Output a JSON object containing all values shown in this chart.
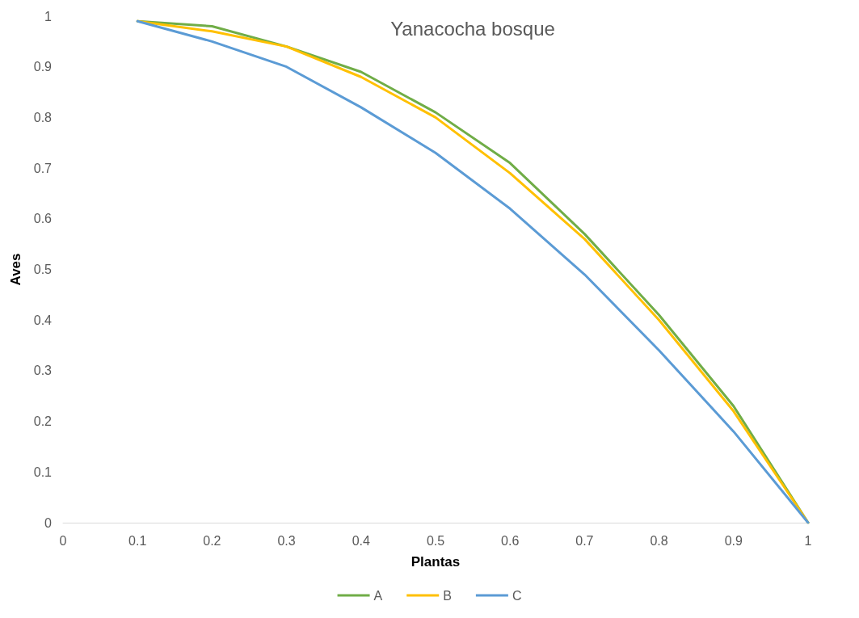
{
  "chart_data": {
    "type": "line",
    "title": "Yanacocha bosque",
    "xlabel": "Plantas",
    "ylabel": "Aves",
    "x": [
      0.1,
      0.2,
      0.3,
      0.4,
      0.5,
      0.6,
      0.7,
      0.8,
      0.9,
      1
    ],
    "series": [
      {
        "name": "A",
        "color": "#70ad47",
        "values": [
          0.99,
          0.98,
          0.94,
          0.89,
          0.81,
          0.71,
          0.57,
          0.41,
          0.23,
          0
        ]
      },
      {
        "name": "B",
        "color": "#ffc000",
        "values": [
          0.99,
          0.97,
          0.94,
          0.88,
          0.8,
          0.69,
          0.56,
          0.4,
          0.22,
          0
        ]
      },
      {
        "name": "C",
        "color": "#5b9bd5",
        "values": [
          0.99,
          0.95,
          0.9,
          0.82,
          0.73,
          0.62,
          0.49,
          0.34,
          0.18,
          0
        ]
      }
    ],
    "xlim": [
      0,
      1
    ],
    "xticks": [
      0,
      0.1,
      0.2,
      0.3,
      0.4,
      0.5,
      0.6,
      0.7,
      0.8,
      0.9,
      1
    ],
    "ylim": [
      0,
      1
    ],
    "yticks": [
      0,
      0.1,
      0.2,
      0.3,
      0.4,
      0.5,
      0.6,
      0.7,
      0.8,
      0.9,
      1
    ],
    "grid": false,
    "legend": "bottom",
    "marker": "none",
    "line_style": "solid"
  }
}
